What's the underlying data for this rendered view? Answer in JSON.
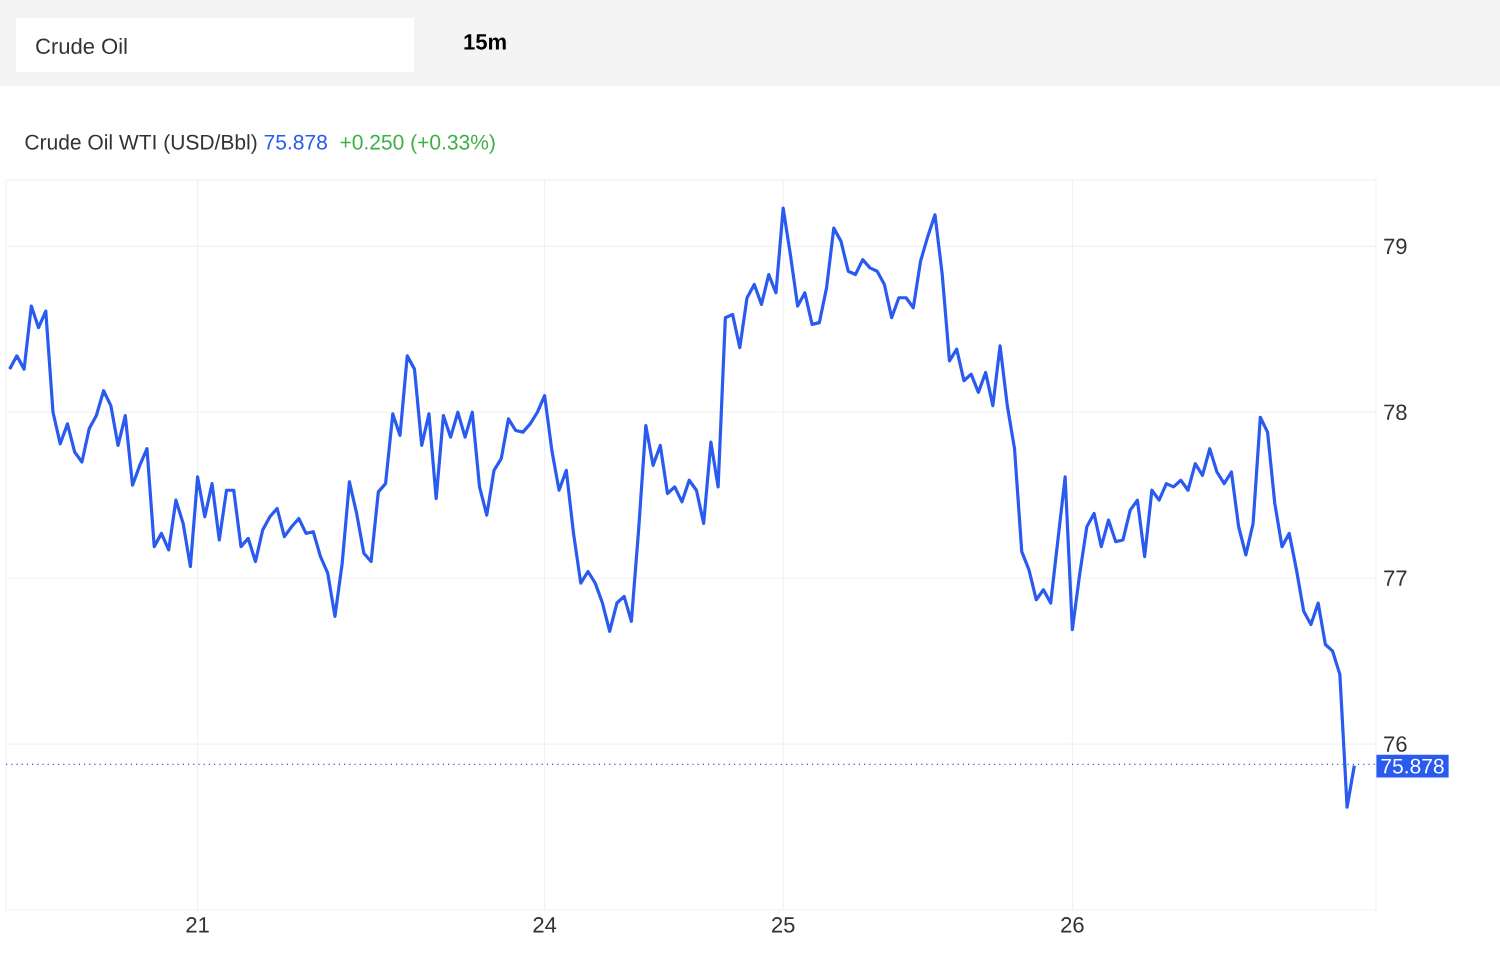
{
  "chart_data": {
    "type": "line",
    "title": "Crude Oil WTI (USD/Bbl)",
    "subtitle": "75.878",
    "annotations": [
      "+0.250 (+0.33%)",
      "Crude Oil",
      "15m"
    ],
    "categories": [
      null,
      null,
      null,
      null,
      null,
      null,
      null,
      null,
      null,
      null,
      null,
      null,
      null,
      null,
      null,
      null,
      null,
      null,
      null,
      null,
      null,
      null,
      null,
      null,
      null,
      null,
      "21",
      null,
      null,
      null,
      null,
      null,
      null,
      null,
      null,
      null,
      null,
      null,
      null,
      null,
      null,
      null,
      null,
      null,
      null,
      null,
      null,
      null,
      null,
      null,
      null,
      null,
      null,
      null,
      null,
      null,
      null,
      null,
      null,
      null,
      null,
      null,
      null,
      null,
      null,
      null,
      null,
      null,
      null,
      null,
      null,
      null,
      null,
      null,
      "24",
      null,
      null,
      null,
      null,
      null,
      null,
      null,
      null,
      null,
      null,
      null,
      null,
      null,
      null,
      null,
      null,
      null,
      null,
      null,
      null,
      null,
      null,
      null,
      null,
      null,
      null,
      null,
      null,
      null,
      null,
      null,
      null,
      "25",
      null,
      null,
      null,
      null,
      null,
      null,
      null,
      null,
      null,
      null,
      null,
      null,
      null,
      null,
      null,
      null,
      null,
      null,
      null,
      null,
      null,
      null,
      null,
      null,
      null,
      null,
      null,
      null,
      null,
      null,
      null,
      null,
      null,
      null,
      null,
      null,
      null,
      null,
      null,
      "26",
      null,
      null,
      null,
      null,
      null,
      null,
      null,
      null,
      null,
      null,
      null,
      null,
      null,
      null,
      null,
      null,
      null,
      null,
      null,
      null,
      null,
      null,
      null,
      null,
      null,
      null,
      null,
      null,
      null,
      null,
      null,
      null,
      null,
      null,
      null,
      null,
      null,
      null,
      null
    ],
    "ylim": [
      75,
      79.4
    ],
    "yticks": [
      76,
      77,
      78,
      79
    ],
    "grid": true,
    "ref_lines": [
      {
        "axis": "y",
        "value": 75.878,
        "label": "75.878",
        "color": "#2a5bf0",
        "line_style": "dotted"
      }
    ],
    "series": [
      {
        "color": "#2a5bf0",
        "values": [
          78.26,
          78.34,
          78.26,
          78.64,
          78.51,
          78.61,
          78.0,
          77.81,
          77.93,
          77.76,
          77.7,
          77.9,
          77.98,
          78.13,
          78.04,
          77.8,
          77.98,
          77.56,
          77.68,
          77.78,
          77.19,
          77.27,
          77.17,
          77.47,
          77.33,
          77.07,
          77.61,
          77.37,
          77.57,
          77.23,
          77.53,
          77.53,
          77.19,
          77.24,
          77.1,
          77.29,
          77.37,
          77.42,
          77.25,
          77.31,
          77.36,
          77.27,
          77.28,
          77.13,
          77.03,
          76.77,
          77.09,
          77.58,
          77.39,
          77.15,
          77.1,
          77.52,
          77.57,
          77.99,
          77.86,
          78.34,
          78.26,
          77.8,
          77.99,
          77.48,
          77.98,
          77.85,
          78.0,
          77.85,
          78.0,
          77.55,
          77.38,
          77.65,
          77.72,
          77.96,
          77.89,
          77.88,
          77.93,
          78.0,
          78.1,
          77.77,
          77.53,
          77.65,
          77.27,
          76.97,
          77.04,
          76.97,
          76.85,
          76.68,
          76.85,
          76.89,
          76.74,
          77.29,
          77.92,
          77.68,
          77.8,
          77.51,
          77.55,
          77.46,
          77.59,
          77.53,
          77.33,
          77.82,
          77.55,
          78.57,
          78.59,
          78.39,
          78.69,
          78.77,
          78.65,
          78.83,
          78.72,
          79.23,
          78.95,
          78.64,
          78.72,
          78.53,
          78.54,
          78.75,
          79.11,
          79.03,
          78.85,
          78.83,
          78.92,
          78.87,
          78.85,
          78.77,
          78.57,
          78.69,
          78.69,
          78.63,
          78.91,
          79.06,
          79.19,
          78.83,
          78.31,
          78.38,
          78.19,
          78.23,
          78.12,
          78.24,
          78.04,
          78.4,
          78.04,
          77.78,
          77.16,
          77.05,
          76.87,
          76.93,
          76.85,
          77.23,
          77.61,
          76.69,
          77.02,
          77.31,
          77.39,
          77.19,
          77.35,
          77.22,
          77.23,
          77.41,
          77.47,
          77.13,
          77.53,
          77.47,
          77.57,
          77.55,
          77.59,
          77.53,
          77.69,
          77.62,
          77.78,
          77.64,
          77.57,
          77.64,
          77.31,
          77.14,
          77.33,
          77.97,
          77.88,
          77.45,
          77.19,
          77.27,
          77.05,
          76.8,
          76.72,
          76.85,
          76.6,
          76.56,
          76.42,
          75.62,
          75.87
        ]
      }
    ]
  }
}
